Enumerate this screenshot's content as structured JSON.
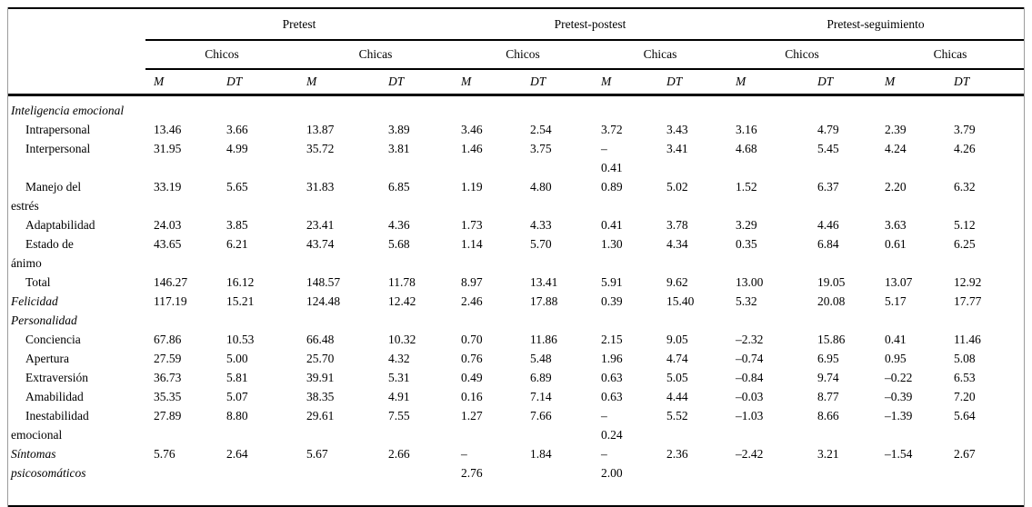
{
  "table": {
    "groups": [
      "Pretest",
      "Pretest-postest",
      "Pretest-seguimiento"
    ],
    "subgroups": [
      "Chicos",
      "Chicas"
    ],
    "measure_labels": [
      "M",
      "DT"
    ],
    "rows": [
      {
        "label": "Inteligencia emocional",
        "italic": true,
        "indent": false,
        "values": [
          "",
          "",
          "",
          "",
          "",
          "",
          "",
          "",
          "",
          "",
          "",
          ""
        ]
      },
      {
        "label": "Intrapersonal",
        "italic": false,
        "indent": true,
        "values": [
          "13.46",
          "3.66",
          "13.87",
          "3.89",
          "3.46",
          "2.54",
          "3.72",
          "3.43",
          "3.16",
          "4.79",
          "2.39",
          "3.79"
        ]
      },
      {
        "label": "Interpersonal",
        "italic": false,
        "indent": true,
        "values": [
          "31.95",
          "4.99",
          "35.72",
          "3.81",
          "1.46",
          "3.75",
          "–\n0.41",
          "3.41",
          "4.68",
          "5.45",
          "4.24",
          "4.26"
        ]
      },
      {
        "label": "Manejo del\nestrés",
        "italic": false,
        "indent": true,
        "values": [
          "33.19",
          "5.65",
          "31.83",
          "6.85",
          "1.19",
          "4.80",
          "0.89",
          "5.02",
          "1.52",
          "6.37",
          "2.20",
          "6.32"
        ]
      },
      {
        "label": "Adaptabilidad",
        "italic": false,
        "indent": true,
        "values": [
          "24.03",
          "3.85",
          "23.41",
          "4.36",
          "1.73",
          "4.33",
          "0.41",
          "3.78",
          "3.29",
          "4.46",
          "3.63",
          "5.12"
        ]
      },
      {
        "label": "Estado de\nánimo",
        "italic": false,
        "indent": true,
        "values": [
          "43.65",
          "6.21",
          "43.74",
          "5.68",
          "1.14",
          "5.70",
          "1.30",
          "4.34",
          "0.35",
          "6.84",
          "0.61",
          "6.25"
        ]
      },
      {
        "label": "Total",
        "italic": false,
        "indent": true,
        "values": [
          "146.27",
          "16.12",
          "148.57",
          "11.78",
          "8.97",
          "13.41",
          "5.91",
          "9.62",
          "13.00",
          "19.05",
          "13.07",
          "12.92"
        ]
      },
      {
        "label": "Felicidad",
        "italic": true,
        "indent": false,
        "values": [
          "117.19",
          "15.21",
          "124.48",
          "12.42",
          "2.46",
          "17.88",
          "0.39",
          "15.40",
          "5.32",
          "20.08",
          "5.17",
          "17.77"
        ]
      },
      {
        "label": "Personalidad",
        "italic": true,
        "indent": false,
        "values": [
          "",
          "",
          "",
          "",
          "",
          "",
          "",
          "",
          "",
          "",
          "",
          ""
        ]
      },
      {
        "label": "Conciencia",
        "italic": false,
        "indent": true,
        "values": [
          "67.86",
          "10.53",
          "66.48",
          "10.32",
          "0.70",
          "11.86",
          "2.15",
          "9.05",
          "–2.32",
          "15.86",
          "0.41",
          "11.46"
        ]
      },
      {
        "label": "Apertura",
        "italic": false,
        "indent": true,
        "values": [
          "27.59",
          "5.00",
          "25.70",
          "4.32",
          "0.76",
          "5.48",
          "1.96",
          "4.74",
          "–0.74",
          "6.95",
          "0.95",
          "5.08"
        ]
      },
      {
        "label": "Extraversión",
        "italic": false,
        "indent": true,
        "values": [
          "36.73",
          "5.81",
          "39.91",
          "5.31",
          "0.49",
          "6.89",
          "0.63",
          "5.05",
          "–0.84",
          "9.74",
          "–0.22",
          "6.53"
        ]
      },
      {
        "label": "Amabilidad",
        "italic": false,
        "indent": true,
        "values": [
          "35.35",
          "5.07",
          "38.35",
          "4.91",
          "0.16",
          "7.14",
          "0.63",
          "4.44",
          "–0.03",
          "8.77",
          "–0.39",
          "7.20"
        ]
      },
      {
        "label": "Inestabilidad\nemocional",
        "italic": false,
        "indent": true,
        "values": [
          "27.89",
          "8.80",
          "29.61",
          "7.55",
          "1.27",
          "7.66",
          "–\n0.24",
          "5.52",
          "–1.03",
          "8.66",
          "–1.39",
          "5.64"
        ]
      },
      {
        "label": "Síntomas\npsicosomáticos",
        "italic": true,
        "indent": false,
        "values": [
          "5.76",
          "2.64",
          "5.67",
          "2.66",
          "–\n2.76",
          "1.84",
          "–\n2.00",
          "2.36",
          "–2.42",
          "3.21",
          "–1.54",
          "2.67"
        ]
      }
    ]
  }
}
